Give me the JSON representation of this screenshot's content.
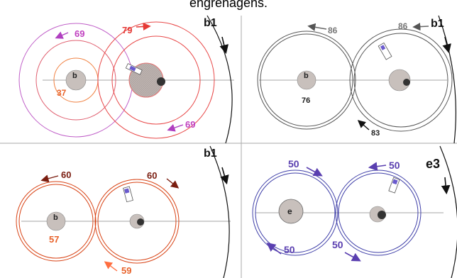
{
  "caption": "engrenagens.",
  "colors": {
    "panel_a": "#c2185b",
    "panel_a_alt": "#ef5350",
    "panel_a_orange": "#f57c00",
    "panel_b": "#555555",
    "panel_c": "#d84315",
    "panel_d": "#3f3fa8",
    "hub_fill": "#c8c0bc",
    "divider": "#999999"
  },
  "panels": {
    "top_left": {
      "wheel_label": "b1",
      "center_label": "b",
      "numbers": [
        "69",
        "79",
        "37",
        "69"
      ]
    },
    "top_right": {
      "wheel_label": "b1",
      "center_label": "b",
      "numbers": [
        "86",
        "86",
        "76",
        "83"
      ]
    },
    "bottom_left": {
      "wheel_label": "b1",
      "center_label": "b",
      "numbers": [
        "60",
        "60",
        "57",
        "59"
      ]
    },
    "bottom_right": {
      "wheel_label": "e3",
      "center_label": "e",
      "numbers": [
        "50",
        "50",
        "50",
        "50"
      ]
    }
  }
}
